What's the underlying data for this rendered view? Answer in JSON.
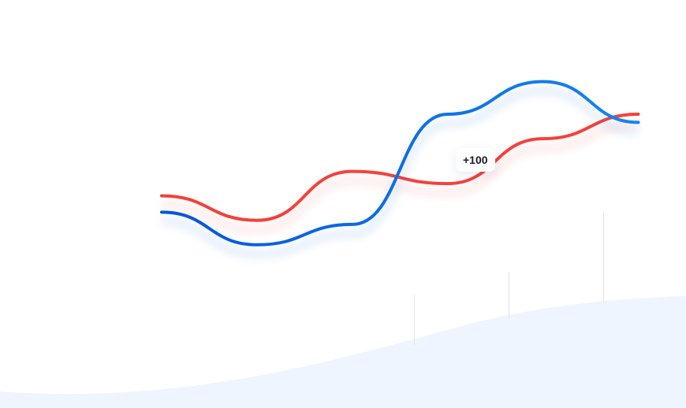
{
  "chart_data": {
    "type": "line",
    "title": "",
    "xlabel": "",
    "ylabel": "",
    "grid": false,
    "legend": "none",
    "x": [
      0,
      1,
      2,
      3,
      4,
      5
    ],
    "xlim": [
      0,
      5.5
    ],
    "ylim": [
      0,
      100
    ],
    "series": [
      {
        "values": [
          52,
          46,
          58,
          55,
          66,
          72
        ],
        "color": "#f5413c"
      },
      {
        "values": [
          48,
          40,
          45,
          72,
          80,
          70
        ],
        "color": "#0a63e0"
      }
    ],
    "background_area": {
      "values": [
        5,
        7,
        14,
        24,
        30,
        32
      ],
      "color": "#eef5fe"
    },
    "annotation": {
      "text": "+100"
    }
  }
}
